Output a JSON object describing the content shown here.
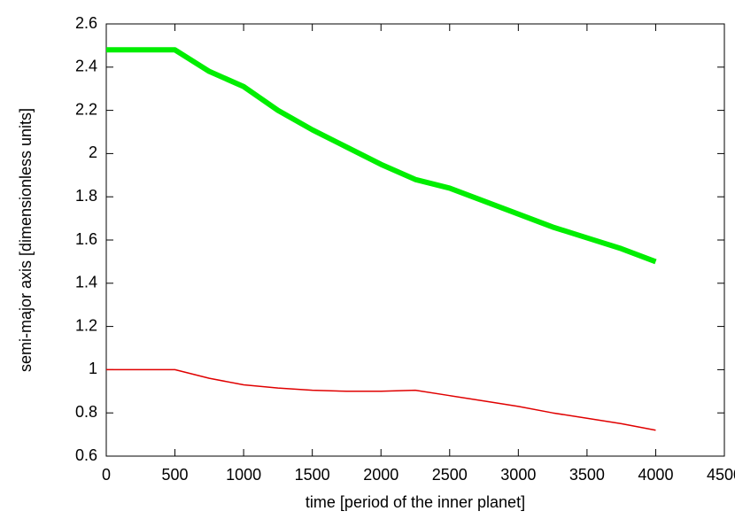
{
  "chart_data": {
    "type": "line",
    "x_label": "time [period of the inner planet]",
    "y_label": "semi-major axis [dimensionless units]",
    "x": [
      0,
      250,
      500,
      750,
      1000,
      1250,
      1500,
      1750,
      2000,
      2250,
      2500,
      2750,
      3000,
      3250,
      3500,
      3750,
      4000
    ],
    "series": [
      {
        "color": "#00ee00",
        "values": [
          2.48,
          2.48,
          2.48,
          2.38,
          2.31,
          2.2,
          2.11,
          2.03,
          1.95,
          1.88,
          1.84,
          1.78,
          1.72,
          1.66,
          1.61,
          1.56,
          1.5
        ]
      },
      {
        "color": "#e00000",
        "values": [
          1.0,
          1.0,
          1.0,
          0.96,
          0.93,
          0.915,
          0.905,
          0.9,
          0.9,
          0.905,
          0.88,
          0.855,
          0.83,
          0.8,
          0.775,
          0.75,
          0.72
        ]
      }
    ],
    "xlim": [
      0,
      4500
    ],
    "xticks": [
      0,
      500,
      1000,
      1500,
      2000,
      2500,
      3000,
      3500,
      4000,
      4500
    ],
    "ylim": [
      0.6,
      2.6
    ],
    "yticks": [
      0.6,
      0.8,
      1,
      1.2,
      1.4,
      1.6,
      1.8,
      2,
      2.2,
      2.4,
      2.6
    ],
    "grid": false
  }
}
